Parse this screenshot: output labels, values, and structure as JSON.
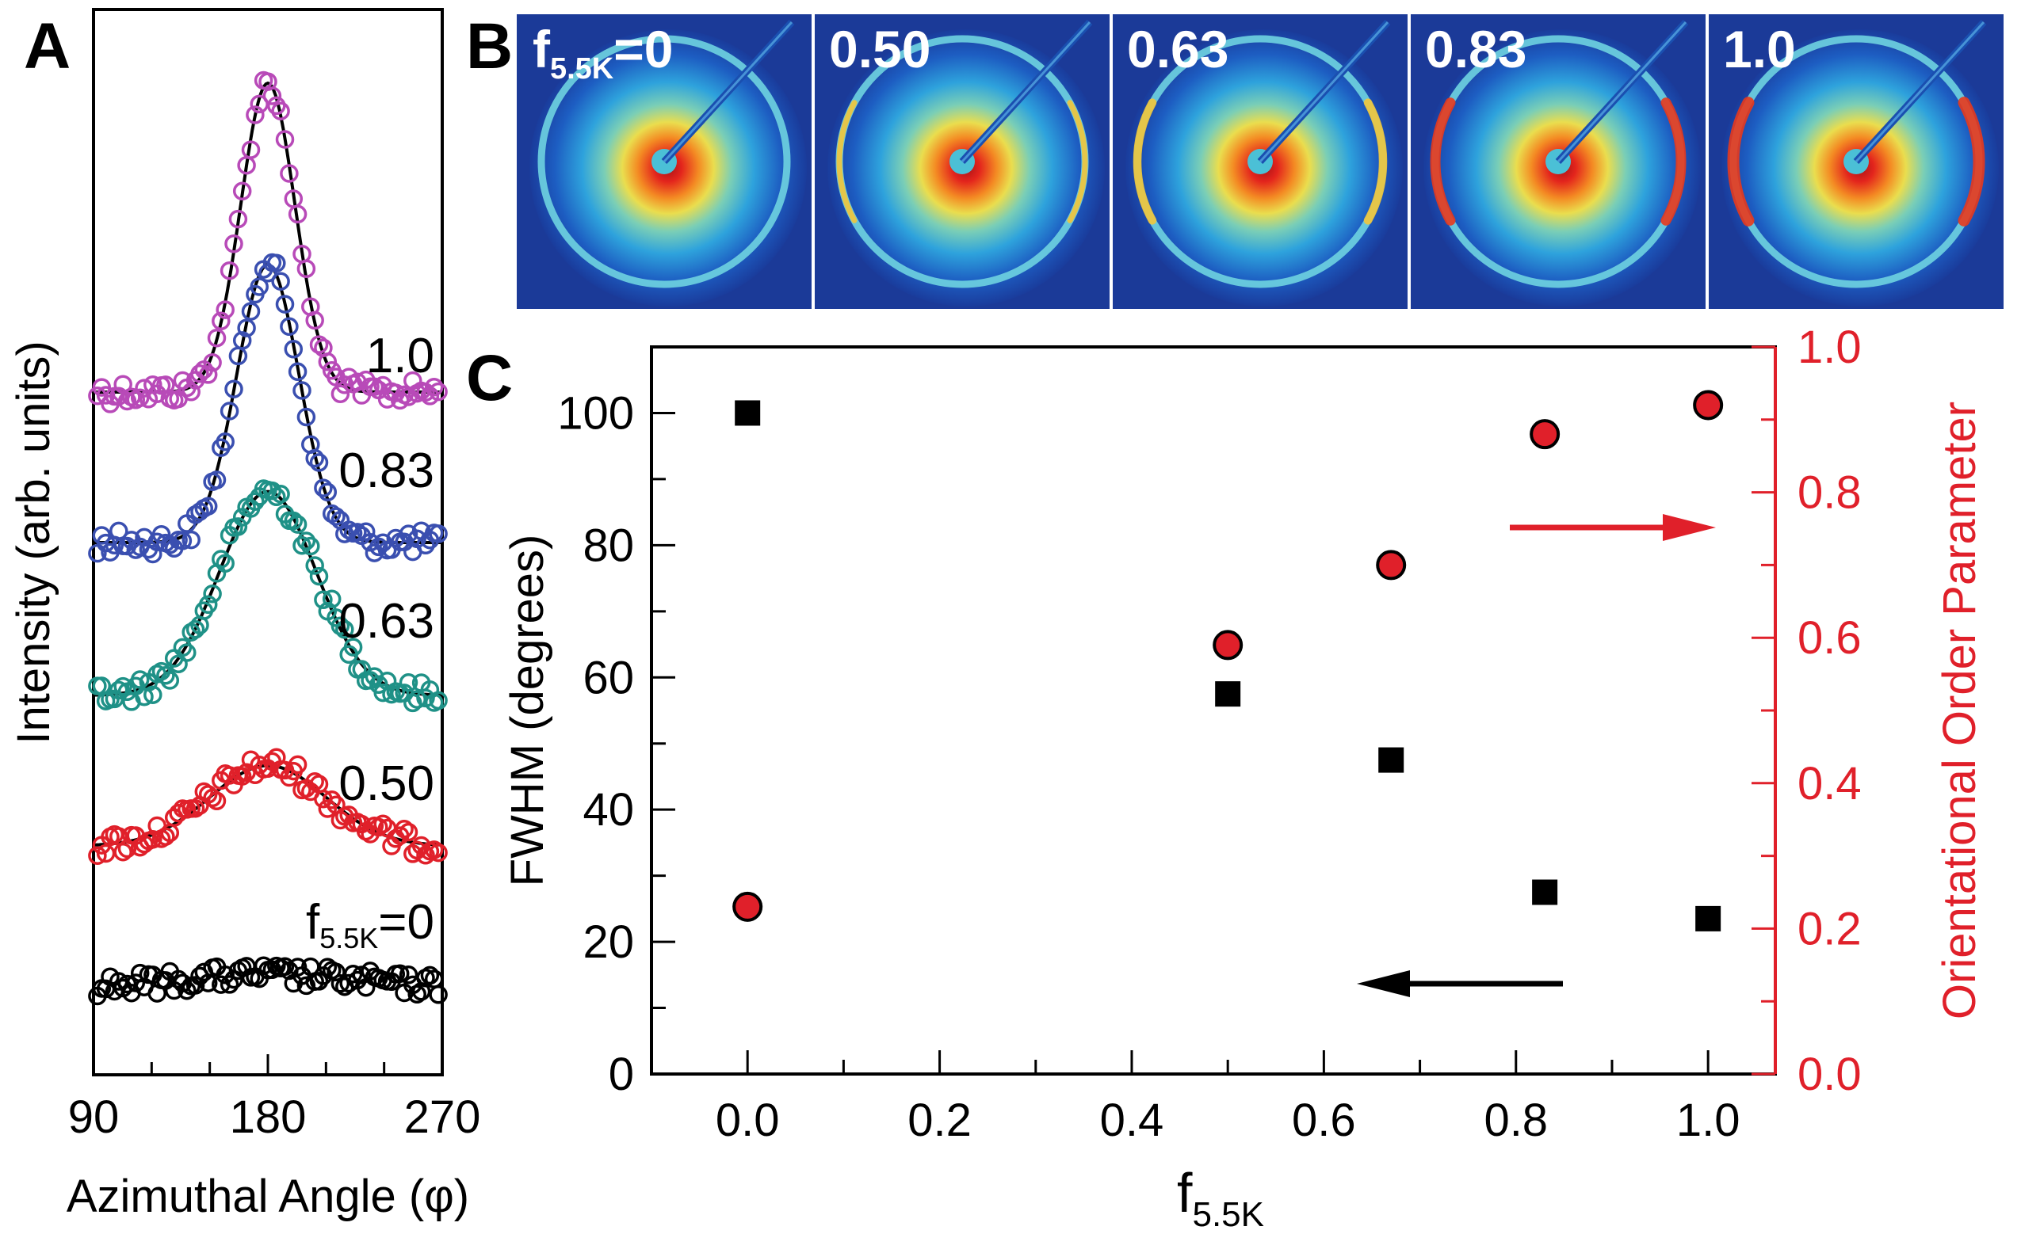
{
  "colors": {
    "black": "#000000",
    "red": "#e0202a",
    "magenta": "#b84ab8",
    "blue": "#3a4fb0",
    "teal": "#1f9187",
    "redCurve": "#e0202a",
    "fit": "#000000"
  },
  "panels": {
    "a": "A",
    "b": "B",
    "c": "C"
  },
  "panelA": {
    "xlabel": "Azimuthal Angle (φ)",
    "ylabel": "Intensity (arb. units)",
    "xticks": [
      "90",
      "180",
      "270"
    ],
    "series": [
      {
        "name": "1.0",
        "label": "1.0",
        "color": "#b84ab8",
        "amplitude": 1.0,
        "width": 14,
        "noise": 0.07
      },
      {
        "name": "0.83",
        "label": "0.83",
        "color": "#3a4fb0",
        "amplitude": 0.9,
        "width": 16,
        "noise": 0.07
      },
      {
        "name": "0.63",
        "label": "0.63",
        "color": "#1f9187",
        "amplitude": 0.66,
        "width": 25,
        "noise": 0.07
      },
      {
        "name": "0.50",
        "label": "0.50",
        "color": "#e0202a",
        "amplitude": 0.26,
        "width": 30,
        "noise": 0.07
      },
      {
        "name": "0",
        "label_main": "f",
        "label_sub": "5.5K",
        "label_tail": "=0",
        "color": "#000000",
        "amplitude": 0.0,
        "width": 30,
        "noise": 0.08
      }
    ]
  },
  "panelB": {
    "images": [
      {
        "label_main": "f",
        "label_sub": "5.5K",
        "label_tail": "=0",
        "arc": 0.0
      },
      {
        "label": "0.50",
        "arc": 0.1
      },
      {
        "label": "0.63",
        "arc": 0.45
      },
      {
        "label": "0.83",
        "arc": 0.7
      },
      {
        "label": "1.0",
        "arc": 0.9
      }
    ]
  },
  "chart_data": {
    "type": "scatter",
    "title": "",
    "xlabel_main": "f",
    "xlabel_sub": "5.5K",
    "ylabel": "FWHM (degrees)",
    "y2label": "Orientational Order Parameter",
    "xlim": [
      -0.1,
      1.07
    ],
    "ylim": [
      0,
      110
    ],
    "y2lim": [
      0.0,
      1.0
    ],
    "xticks": [
      "0.0",
      "0.2",
      "0.4",
      "0.6",
      "0.8",
      "1.0"
    ],
    "xtick_values": [
      0.0,
      0.2,
      0.4,
      0.6,
      0.8,
      1.0
    ],
    "yticks": [
      "0",
      "20",
      "40",
      "60",
      "80",
      "100"
    ],
    "ytick_values": [
      0,
      20,
      40,
      60,
      80,
      100
    ],
    "y2ticks": [
      "0.0",
      "0.2",
      "0.4",
      "0.6",
      "0.8",
      "1.0"
    ],
    "y2tick_values": [
      0.0,
      0.2,
      0.4,
      0.6,
      0.8,
      1.0
    ],
    "series": [
      {
        "name": "FWHM",
        "axis": "left",
        "marker": "square",
        "color": "#000000",
        "x": [
          0.0,
          0.5,
          0.67,
          0.83,
          1.0
        ],
        "y": [
          100,
          57.5,
          47.5,
          27.5,
          23.5
        ]
      },
      {
        "name": "Orientational Order Parameter",
        "axis": "right",
        "marker": "circle",
        "color": "#e0202a",
        "x": [
          0.0,
          0.5,
          0.67,
          0.83,
          1.0
        ],
        "y": [
          0.23,
          0.59,
          0.7,
          0.88,
          0.92
        ]
      }
    ]
  }
}
